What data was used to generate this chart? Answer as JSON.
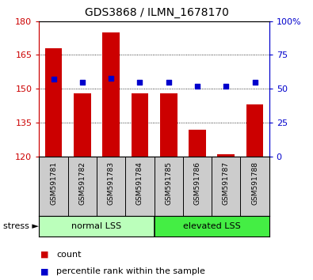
{
  "title": "GDS3868 / ILMN_1678170",
  "samples": [
    "GSM591781",
    "GSM591782",
    "GSM591783",
    "GSM591784",
    "GSM591785",
    "GSM591786",
    "GSM591787",
    "GSM591788"
  ],
  "counts": [
    168,
    148,
    175,
    148,
    148,
    132,
    121,
    143
  ],
  "percentiles": [
    57,
    55,
    58,
    55,
    55,
    52,
    52,
    55
  ],
  "ylim_left": [
    120,
    180
  ],
  "ylim_right": [
    0,
    100
  ],
  "yticks_left": [
    120,
    135,
    150,
    165,
    180
  ],
  "yticks_right": [
    0,
    25,
    50,
    75,
    100
  ],
  "ytick_labels_right": [
    "0",
    "25",
    "50",
    "75",
    "100%"
  ],
  "bar_color": "#cc0000",
  "dot_color": "#0000cc",
  "bar_width": 0.6,
  "bg_xtick": "#cccccc",
  "bg_group_normal": "#bbffbb",
  "bg_group_elevated": "#44ee44",
  "left_axis_color": "#cc0000",
  "right_axis_color": "#0000cc",
  "normal_lss_label": "normal LSS",
  "elevated_lss_label": "elevated LSS",
  "stress_label": "stress ►",
  "legend_count": "count",
  "legend_pct": "percentile rank within the sample"
}
